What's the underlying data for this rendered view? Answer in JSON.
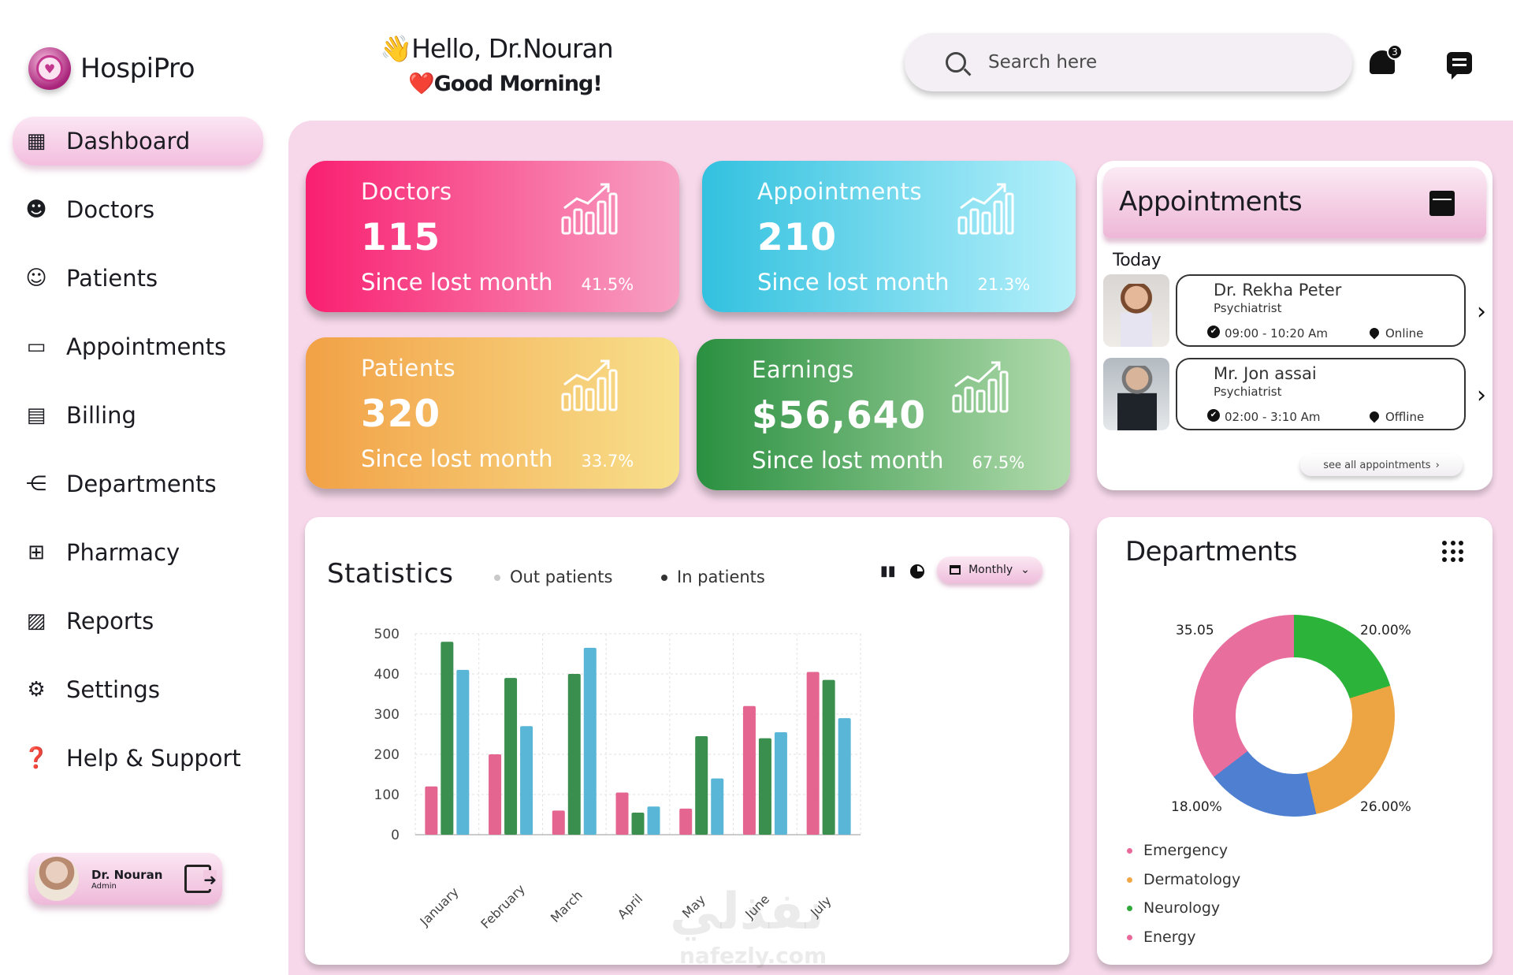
{
  "app": {
    "name": "HospiPro"
  },
  "header": {
    "hello": "👋Hello, Dr.Nouran",
    "morning": "❤️Good Morning!",
    "search_placeholder": "Search here",
    "notification_count": "3"
  },
  "sidebar": {
    "items": [
      {
        "label": "Dashboard",
        "icon": "dashboard-icon"
      },
      {
        "label": "Doctors",
        "icon": "doctor-icon"
      },
      {
        "label": "Patients",
        "icon": "patient-icon"
      },
      {
        "label": "Appointments",
        "icon": "appointments-icon"
      },
      {
        "label": "Billing",
        "icon": "billing-icon"
      },
      {
        "label": "Departments",
        "icon": "departments-icon"
      },
      {
        "label": "Pharmacy",
        "icon": "pharmacy-icon"
      },
      {
        "label": "Reports",
        "icon": "reports-icon"
      },
      {
        "label": "Settings",
        "icon": "settings-icon"
      },
      {
        "label": "Help & Support",
        "icon": "help-icon"
      }
    ],
    "user": {
      "name": "Dr. Nouran",
      "role": "Admin"
    }
  },
  "cards": {
    "doctors": {
      "label": "Doctors",
      "value": "115",
      "since": "Since lost month",
      "pct": "41.5%"
    },
    "appointments": {
      "label": "Appointments",
      "value": "210",
      "since": "Since lost month",
      "pct": "21.3%"
    },
    "patients": {
      "label": "Patients",
      "value": "320",
      "since": "Since lost month",
      "pct": "33.7%"
    },
    "earnings": {
      "label": "Earnings",
      "value": "$56,640",
      "since": "Since lost month",
      "pct": "67.5%"
    }
  },
  "appointments_panel": {
    "title": "Appointments",
    "today": "Today",
    "items": [
      {
        "name": "Dr. Rekha Peter",
        "specialty": "Psychiatrist",
        "time": "09:00 - 10:20 Am",
        "status": "Online"
      },
      {
        "name": "Mr. Jon assai",
        "specialty": "Psychiatrist",
        "time": "02:00 - 3:10 Am",
        "status": "Offline"
      }
    ],
    "see_all": "see all appointments"
  },
  "statistics": {
    "title": "Statistics",
    "legend_out": "Out patients",
    "legend_in": "In patients",
    "period": "Monthly"
  },
  "chart_data": {
    "type": "bar",
    "categories": [
      "January",
      "February",
      "March",
      "April",
      "May",
      "June",
      "July"
    ],
    "series": [
      {
        "values": [
          120,
          200,
          60,
          105,
          65,
          320,
          405
        ],
        "color": "#e4658f"
      },
      {
        "values": [
          480,
          390,
          400,
          55,
          245,
          240,
          385
        ],
        "color": "#3a8f4e"
      },
      {
        "values": [
          410,
          270,
          465,
          70,
          140,
          255,
          290
        ],
        "color": "#59b6d6"
      }
    ],
    "ylim": [
      0,
      500
    ],
    "yticks": [
      0,
      100,
      200,
      300,
      400,
      500
    ],
    "grid": true
  },
  "departments": {
    "title": "Departments",
    "legend": [
      {
        "name": "Emergency",
        "color": "#e8699a"
      },
      {
        "name": "Dermatology",
        "color": "#f0a847"
      },
      {
        "name": "Neurology",
        "color": "#2faa3a"
      },
      {
        "name": "Energy",
        "color": "#e8699a"
      }
    ],
    "labels": {
      "top_left": "35.05",
      "top_right": "20.00%",
      "bottom_left": "18.00%",
      "bottom_right": "26.00%"
    },
    "slices": [
      {
        "value": 20.0,
        "color": "#2cb33a"
      },
      {
        "value": 26.0,
        "color": "#eda443"
      },
      {
        "value": 18.0,
        "color": "#4f7fd0"
      },
      {
        "value": 35.05,
        "color": "#e86e9e"
      }
    ]
  },
  "watermark": {
    "text": "نفذلي",
    "sub": "nafezly.com"
  }
}
